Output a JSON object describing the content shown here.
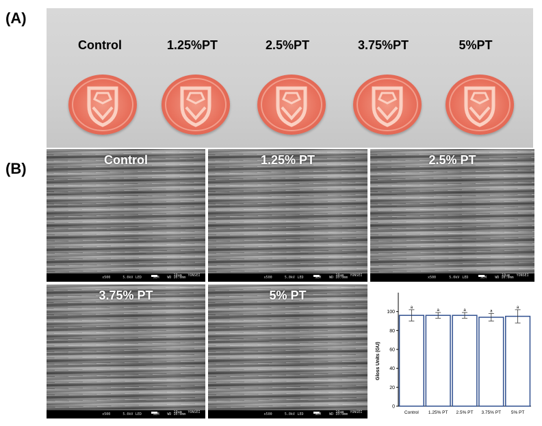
{
  "panel_labels": {
    "a": "(A)",
    "b": "(B)"
  },
  "photo": {
    "samples": [
      "Control",
      "1.25%PT",
      "2.5%PT",
      "3.75%PT",
      "5%PT"
    ]
  },
  "sem_images": [
    {
      "title": "Control",
      "footer": {
        "mag": "x500",
        "kv": "5.0kV",
        "det": "LED",
        "mode": "SEM",
        "wd": "WD 10.0mm",
        "scale": "10µm",
        "org": "YONSEI"
      }
    },
    {
      "title": "1.25% PT",
      "footer": {
        "mag": "x500",
        "kv": "5.0kV",
        "det": "LED",
        "mode": "SEM",
        "wd": "WD 10.0mm",
        "scale": "10µm",
        "org": "YONSEI"
      }
    },
    {
      "title": "2.5% PT",
      "footer": {
        "mag": "x500",
        "kv": "5.0kV",
        "det": "LED",
        "mode": "SEM",
        "wd": "WD 10.0mm",
        "scale": "10µm",
        "org": "YONSEI"
      }
    },
    {
      "title": "3.75% PT",
      "footer": {
        "mag": "x500",
        "kv": "5.0kV",
        "det": "LED",
        "mode": "SEM",
        "wd": "WD 10.0mm",
        "scale": "10µm",
        "org": "YONSEI"
      }
    },
    {
      "title": "5% PT",
      "footer": {
        "mag": "x500",
        "kv": "5.0kV",
        "det": "LED",
        "mode": "SEM",
        "wd": "WD 10.0mm",
        "scale": "10µm",
        "org": "YONSEI"
      }
    }
  ],
  "colors": {
    "bar_stroke": "#2f4f8f",
    "bar_fill": "#ffffff",
    "axis": "#000000"
  },
  "chart_data": {
    "type": "bar",
    "title": "",
    "xlabel": "",
    "ylabel": "Gloss Units (GU)",
    "categories": [
      "Control",
      "1.25% PT",
      "2.5% PT",
      "3.75% PT",
      "5% PT"
    ],
    "values": [
      96,
      96,
      96,
      94,
      95
    ],
    "errors": [
      6,
      3,
      3,
      4,
      7
    ],
    "significance": [
      "a",
      "a",
      "a",
      "a",
      "a"
    ],
    "ylim": [
      0,
      120
    ],
    "yticks": [
      0,
      20,
      40,
      60,
      80,
      100
    ],
    "grid": false,
    "legend": "none"
  }
}
